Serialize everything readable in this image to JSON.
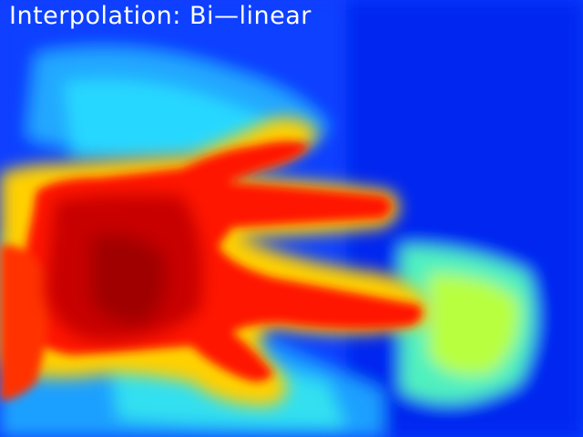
{
  "overlay": {
    "title": "Interpolation: Bi—linear"
  },
  "colormap": {
    "name": "jet",
    "stops": [
      "#00008f",
      "#0000ff",
      "#00ffff",
      "#ffff00",
      "#ff0000",
      "#800000"
    ]
  }
}
